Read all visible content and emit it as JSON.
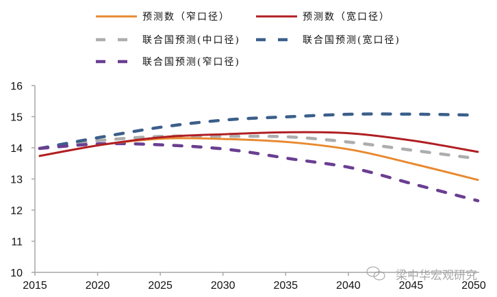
{
  "chart_data": {
    "type": "line",
    "title": "",
    "xlabel": "",
    "ylabel": "",
    "xlim": [
      2015,
      2050
    ],
    "ylim": [
      10,
      16
    ],
    "x_ticks": [
      2015,
      2020,
      2025,
      2030,
      2035,
      2040,
      2045,
      2050
    ],
    "y_ticks": [
      10,
      11,
      12,
      13,
      14,
      15,
      16
    ],
    "grid": false,
    "legend_position": "top",
    "x": [
      2015,
      2020,
      2025,
      2030,
      2035,
      2040,
      2045,
      2050
    ],
    "series": [
      {
        "name": "预测数（窄口径）",
        "style": "solid",
        "color": "#E8892F",
        "values": [
          13.74,
          14.1,
          14.3,
          14.28,
          14.18,
          13.93,
          13.47,
          12.97
        ]
      },
      {
        "name": "预测数（宽口径）",
        "style": "solid",
        "color": "#B01E23",
        "values": [
          13.74,
          14.1,
          14.35,
          14.44,
          14.5,
          14.46,
          14.22,
          13.87
        ]
      },
      {
        "name": "联合国预测(中口径)",
        "style": "dashed",
        "color": "#ADADAD",
        "values": [
          13.98,
          14.24,
          14.37,
          14.37,
          14.35,
          14.17,
          13.91,
          13.65
        ]
      },
      {
        "name": "联合国预测(宽口径)",
        "style": "dashed",
        "color": "#3B5F8A",
        "values": [
          13.98,
          14.35,
          14.68,
          14.9,
          15.0,
          15.08,
          15.08,
          15.05
        ]
      },
      {
        "name": "联合国预测(窄口径)",
        "style": "dashed",
        "color": "#6A3E92",
        "values": [
          13.98,
          14.13,
          14.09,
          13.95,
          13.65,
          13.35,
          12.82,
          12.3
        ]
      }
    ]
  },
  "watermark": "梁中华宏观研究"
}
